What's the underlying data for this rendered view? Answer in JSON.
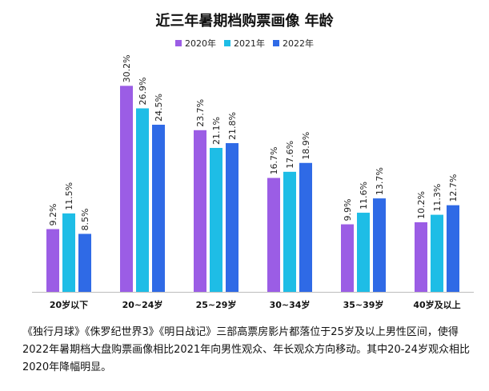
{
  "chart_data": {
    "type": "bar",
    "title": "近三年暑期档购票画像 年龄",
    "categories": [
      "20岁以下",
      "20~24岁",
      "25~29岁",
      "30~34岁",
      "35~39岁",
      "40岁及以上"
    ],
    "series": [
      {
        "name": "2020年",
        "color": "#9b5de5",
        "values": [
          9.2,
          30.2,
          23.7,
          16.7,
          9.9,
          10.2
        ],
        "labels": [
          "9.2%",
          "30.2%",
          "23.7%",
          "16.7%",
          "9.9%",
          "10.2%"
        ]
      },
      {
        "name": "2021年",
        "color": "#1ebde6",
        "values": [
          11.5,
          26.9,
          21.1,
          17.6,
          11.6,
          11.3
        ],
        "labels": [
          "11.5%",
          "26.9%",
          "21.1%",
          "17.6%",
          "11.6%",
          "11.3%"
        ]
      },
      {
        "name": "2022年",
        "color": "#2f6ae6",
        "values": [
          8.5,
          24.5,
          21.8,
          18.9,
          13.7,
          12.7
        ],
        "labels": [
          "8.5%",
          "24.5%",
          "21.8%",
          "18.9%",
          "13.7%",
          "12.7%"
        ]
      }
    ],
    "ylim": [
      0,
      32
    ],
    "xlabel": "",
    "ylabel": "",
    "legend": "top-center",
    "grid": false
  },
  "caption": "《独行月球》《侏罗纪世界3》《明日战记》三部高票房影片都落位于25岁及以上男性区间，使得2022年暑期档大盘购票画像相比2021年向男性观众、年长观众方向移动。其中20-24岁观众相比2020年降幅明显。"
}
